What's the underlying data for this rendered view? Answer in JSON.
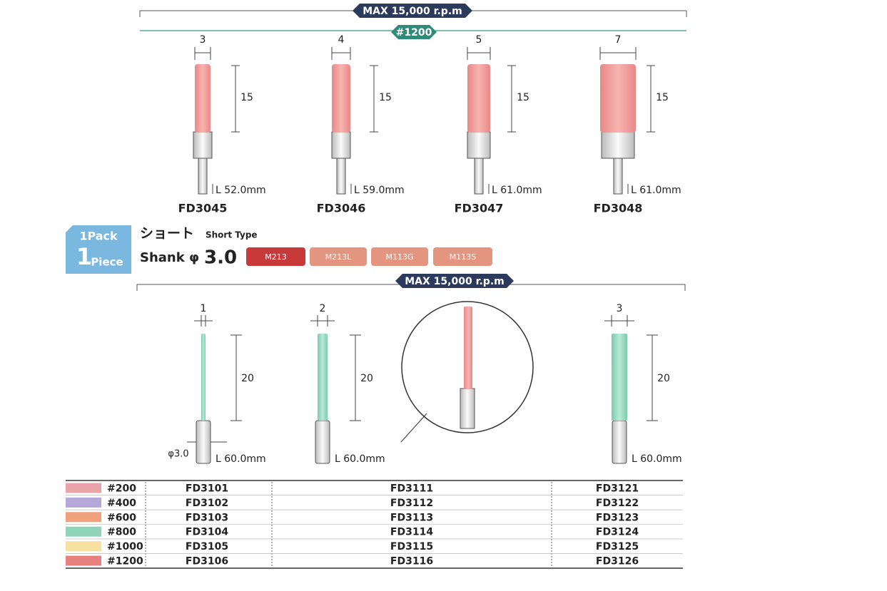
{
  "top_section": {
    "speed": "MAX 15,000 r.p.m",
    "grit": "#1200",
    "items": [
      {
        "diameter": "3",
        "length": "15",
        "total": "L 52.0mm",
        "code": "FD3045"
      },
      {
        "diameter": "4",
        "length": "15",
        "total": "L 59.0mm",
        "code": "FD3046"
      },
      {
        "diameter": "5",
        "length": "15",
        "total": "L 61.0mm",
        "code": "FD3047"
      },
      {
        "diameter": "7",
        "length": "15",
        "total": "L 61.0mm",
        "code": "FD3048"
      }
    ]
  },
  "badge": {
    "pack": "1Pack",
    "count": "1",
    "unit": "Piece"
  },
  "type": {
    "jp": "ショート",
    "en": "Short Type",
    "shank_label": "Shank φ",
    "shank_value": "3.0"
  },
  "tags": [
    "M213",
    "M213L",
    "M113G",
    "M113S"
  ],
  "bottom_section": {
    "speed": "MAX 15,000 r.p.m",
    "shank_note": "φ3.0",
    "items": [
      {
        "diameter": "1",
        "length": "20",
        "total": "L 60.0mm"
      },
      {
        "diameter": "2",
        "length": "20",
        "total": "L 60.0mm"
      },
      {
        "diameter": "3",
        "length": "20",
        "total": "L 60.0mm"
      }
    ]
  },
  "table": {
    "rows": [
      [
        "#200",
        "FD3101",
        "FD3111",
        "FD3121"
      ],
      [
        "#400",
        "FD3102",
        "FD3112",
        "FD3122"
      ],
      [
        "#600",
        "FD3103",
        "FD3113",
        "FD3123"
      ],
      [
        "#800",
        "FD3104",
        "FD3114",
        "FD3124"
      ],
      [
        "#1000",
        "FD3105",
        "FD3115",
        "FD3125"
      ],
      [
        "#1200",
        "FD3106",
        "FD3116",
        "FD3126"
      ]
    ]
  }
}
